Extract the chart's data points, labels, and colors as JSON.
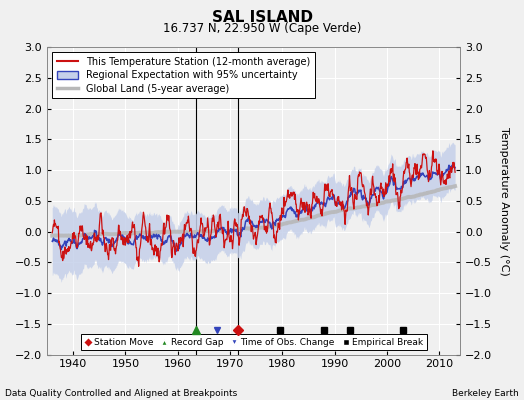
{
  "title": "SAL ISLAND",
  "subtitle": "16.737 N, 22.950 W (Cape Verde)",
  "ylabel": "Temperature Anomaly (°C)",
  "xlabel_note": "Data Quality Controlled and Aligned at Breakpoints",
  "credit": "Berkeley Earth",
  "xlim": [
    1935,
    2014
  ],
  "ylim": [
    -2,
    3
  ],
  "yticks": [
    -2,
    -1.5,
    -1,
    -0.5,
    0,
    0.5,
    1,
    1.5,
    2,
    2.5,
    3
  ],
  "xticks": [
    1940,
    1950,
    1960,
    1970,
    1980,
    1990,
    2000,
    2010
  ],
  "bg_color": "#f0f0f0",
  "station_move": [
    1971.5
  ],
  "record_gap": [
    1963.5
  ],
  "obs_change": [
    1967.5
  ],
  "empirical_break": [
    1979.5,
    1988.0,
    1993.0,
    2003.0
  ],
  "vlines": [
    1963.5,
    1971.5
  ],
  "marker_y": -1.6,
  "legend_items": [
    "This Temperature Station (12-month average)",
    "Regional Expectation with 95% uncertainty",
    "Global Land (5-year average)"
  ],
  "bottom_legend_items": [
    "Station Move",
    "Record Gap",
    "Time of Obs. Change",
    "Empirical Break"
  ]
}
